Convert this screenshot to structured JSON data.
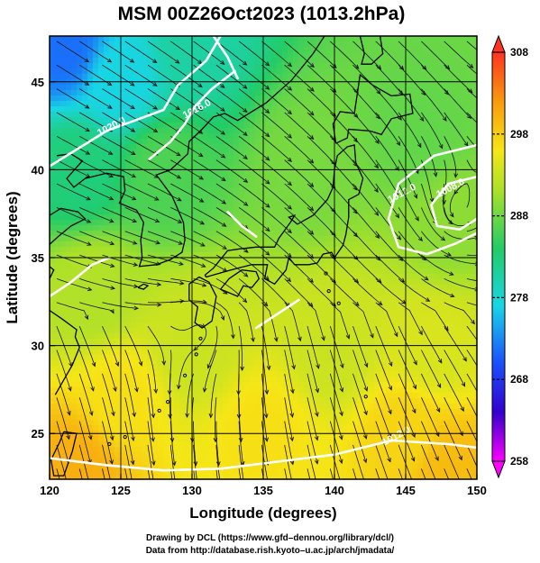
{
  "chart_data": {
    "type": "heatmap",
    "title": "MSM 00Z26Oct2023 (1013.2hPa)",
    "xlabel": "Longitude (degrees)",
    "ylabel": "Latitude (degrees)",
    "xlim": [
      120,
      150
    ],
    "ylim": [
      22.4,
      47.6
    ],
    "xticks": [
      120,
      125,
      130,
      135,
      140,
      145,
      150
    ],
    "xtick_labels": [
      "120",
      "125",
      "130",
      "135",
      "140",
      "145",
      "150"
    ],
    "yticks": [
      25,
      30,
      35,
      40,
      45
    ],
    "ytick_labels": [
      "25",
      "30",
      "35",
      "40",
      "45"
    ],
    "grid": true,
    "colorbar": {
      "ticks": [
        258,
        268,
        278,
        288,
        298,
        308
      ],
      "tick_labels": [
        "258",
        "268",
        "278",
        "288",
        "298",
        "308"
      ],
      "range": [
        258,
        308
      ],
      "colors": [
        "#ff00ff",
        "#3300cc",
        "#1a4fff",
        "#18d6e6",
        "#22cc66",
        "#a8e02a",
        "#f6e616",
        "#f89a0c",
        "#ff3322"
      ]
    },
    "field_samples": [
      {
        "lon": 121,
        "lat": 47,
        "value": 272
      },
      {
        "lon": 125,
        "lat": 45,
        "value": 277
      },
      {
        "lon": 130,
        "lat": 47,
        "value": 280
      },
      {
        "lon": 122,
        "lat": 40,
        "value": 282
      },
      {
        "lon": 128,
        "lat": 40,
        "value": 285
      },
      {
        "lon": 138,
        "lat": 40,
        "value": 287
      },
      {
        "lon": 146,
        "lat": 42,
        "value": 286
      },
      {
        "lon": 148,
        "lat": 37,
        "value": 288
      },
      {
        "lon": 123,
        "lat": 33,
        "value": 290
      },
      {
        "lon": 130,
        "lat": 30,
        "value": 292
      },
      {
        "lon": 140,
        "lat": 30,
        "value": 292
      },
      {
        "lon": 147,
        "lat": 30,
        "value": 293
      },
      {
        "lon": 125,
        "lat": 27,
        "value": 296
      },
      {
        "lon": 135,
        "lat": 25,
        "value": 296
      },
      {
        "lon": 145,
        "lat": 25,
        "value": 297
      },
      {
        "lon": 122,
        "lat": 23,
        "value": 300
      },
      {
        "lon": 148,
        "lat": 23,
        "value": 299
      }
    ],
    "contour_labels": [
      "1020.0",
      "1016.0",
      "1012.0",
      "1008.0",
      "1012.0"
    ]
  },
  "footer": {
    "line1": "Drawing by DCL (https://www.gfd–dennou.org/library/dcl/)",
    "line2": "Data from http://database.rish.kyoto–u.ac.jp/arch/jmadata/"
  }
}
